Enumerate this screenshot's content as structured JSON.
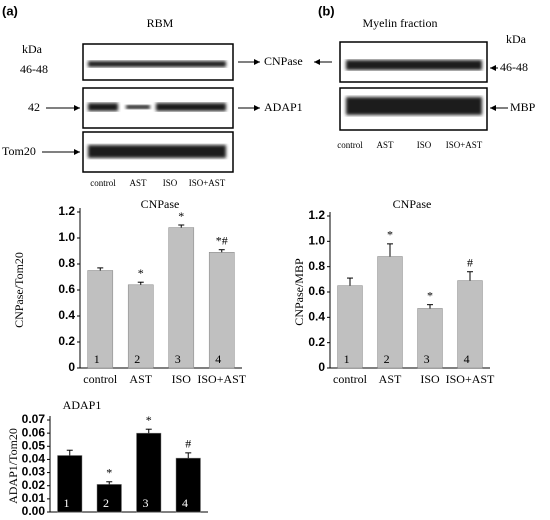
{
  "blots": [
    {
      "label": "(a)",
      "title": "RBM",
      "kda": "kDa",
      "markers": [
        "46-48",
        "42"
      ],
      "proteins": [
        "CNPase",
        "ADAP1",
        "Tom20"
      ],
      "lanes": [
        "control",
        "AST",
        "ISO",
        "ISO+AST"
      ]
    },
    {
      "label": "(b)",
      "title": "Myelin fraction",
      "kda": "kDa",
      "markers": [
        "46-48"
      ],
      "proteins": [
        "MBP"
      ],
      "lanes": [
        "control",
        "AST",
        "ISO",
        "ISO+AST"
      ]
    }
  ],
  "chart_data": [
    {
      "type": "bar",
      "title": "CNPase",
      "ylabel": "CNPase/Tom20",
      "categories": [
        "control",
        "AST",
        "ISO",
        "ISO+AST"
      ],
      "values": [
        0.75,
        0.64,
        1.08,
        0.89
      ],
      "errors": [
        0.02,
        0.02,
        0.02,
        0.02
      ],
      "annotations": [
        null,
        "*",
        "*",
        "*#"
      ],
      "bar_labels": [
        "1",
        "2",
        "3",
        "4"
      ],
      "color": "#c0c0c0",
      "label_color": "#000000",
      "ylim": [
        0,
        1.2
      ],
      "yticks": [
        0,
        0.2,
        0.4,
        0.6,
        0.8,
        {
          "value": 1,
          "label": "1.0"
        },
        1.2
      ]
    },
    {
      "type": "bar",
      "title": "CNPase",
      "ylabel": "CNPase/MBP",
      "categories": [
        "control",
        "AST",
        "ISO",
        "ISO+AST"
      ],
      "values": [
        0.65,
        0.88,
        0.47,
        0.69
      ],
      "errors": [
        0.06,
        0.1,
        0.03,
        0.07
      ],
      "annotations": [
        null,
        "*",
        "*",
        "#"
      ],
      "bar_labels": [
        "1",
        "2",
        "3",
        "4"
      ],
      "color": "#c0c0c0",
      "label_color": "#000000",
      "ylim": [
        0,
        1.2
      ],
      "yticks": [
        0,
        0.2,
        0.4,
        0.6,
        0.8,
        {
          "value": 1,
          "label": "1.0"
        },
        1.2
      ]
    },
    {
      "type": "bar",
      "title": "ADAP1",
      "ylabel": "ADAP1/Tom20",
      "categories": [
        null,
        null,
        null,
        null
      ],
      "values": [
        0.043,
        0.021,
        0.06,
        0.041
      ],
      "errors": [
        0.004,
        0.002,
        0.003,
        0.004
      ],
      "annotations": [
        null,
        "*",
        "*",
        "#"
      ],
      "bar_labels": [
        "1",
        "2",
        "3",
        "4"
      ],
      "color": "#000000",
      "label_color": "#ffffff",
      "ylim": [
        0,
        0.07
      ],
      "yticks": [
        {
          "value": 0,
          "label": "0.00"
        },
        0.01,
        0.02,
        0.03,
        0.04,
        0.05,
        0.06,
        0.07
      ]
    }
  ]
}
